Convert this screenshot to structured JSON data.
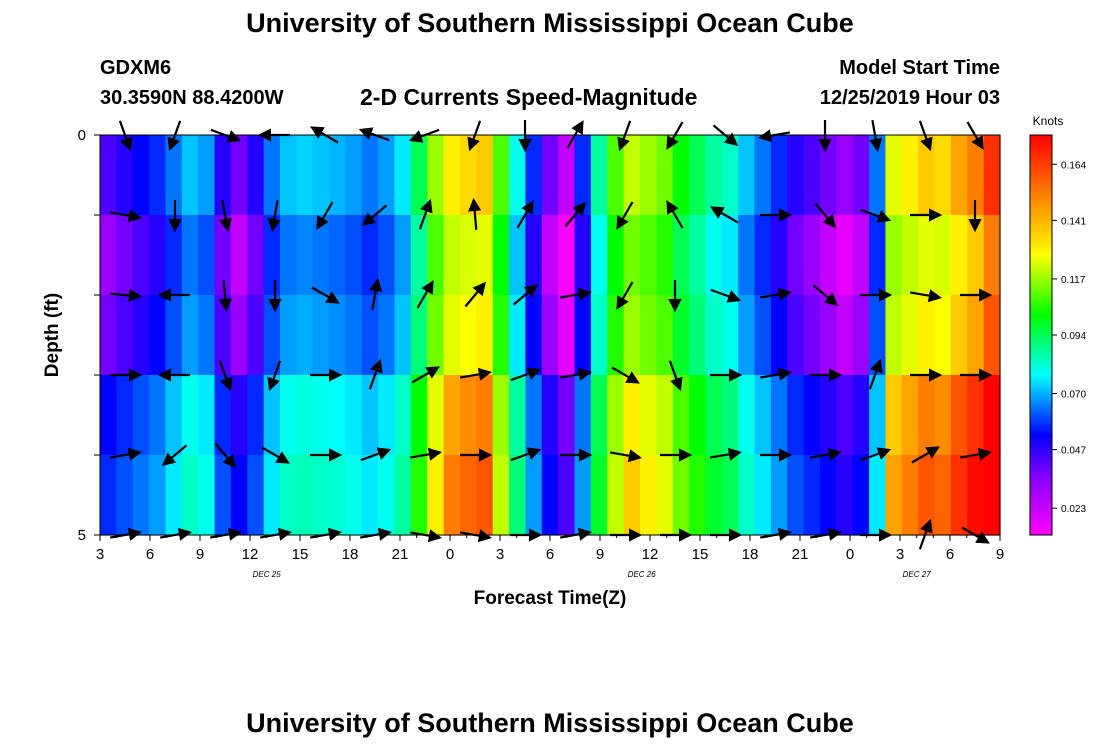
{
  "page": {
    "title_top": "University of Southern Mississippi Ocean Cube",
    "title_bottom": "University of Southern Mississippi Ocean Cube",
    "station": "GDXM6",
    "coords": "30.3590N 88.4200W",
    "product": "2-D Currents Speed-Magnitude",
    "model_label": "Model Start Time",
    "model_time": "12/25/2019 Hour 03"
  },
  "chart_data": {
    "type": "heatmap",
    "title": "2-D Currents Speed-Magnitude",
    "xlabel": "Forecast Time(Z)",
    "ylabel": "Depth (ft)",
    "colorbar_label": "Knots",
    "colorbar_ticks": [
      0.023,
      0.047,
      0.07,
      0.094,
      0.117,
      0.141,
      0.164
    ],
    "color_range": [
      0.012,
      0.176
    ],
    "x_range_hours": [
      0,
      54
    ],
    "x_tick_labels": [
      "3",
      "6",
      "9",
      "12",
      "15",
      "18",
      "21",
      "0",
      "3",
      "6",
      "9",
      "12",
      "15",
      "18",
      "21",
      "0",
      "3",
      "6",
      "9"
    ],
    "date_labels": [
      {
        "text": "DEC 25",
        "hour": 10
      },
      {
        "text": "DEC 26",
        "hour": 32.5
      },
      {
        "text": "DEC 27",
        "hour": 49
      }
    ],
    "y_range": [
      0,
      5
    ],
    "y_tick_labels": [
      "0",
      "5"
    ],
    "layers": 5,
    "speed_columns": [
      0.035,
      0.04,
      0.045,
      0.05,
      0.06,
      0.07,
      0.065,
      0.04,
      0.03,
      0.04,
      0.06,
      0.07,
      0.072,
      0.07,
      0.068,
      0.065,
      0.06,
      0.065,
      0.075,
      0.1,
      0.13,
      0.145,
      0.148,
      0.15,
      0.12,
      0.08,
      0.05,
      0.03,
      0.02,
      0.05,
      0.09,
      0.12,
      0.135,
      0.13,
      0.125,
      0.11,
      0.1,
      0.09,
      0.085,
      0.07,
      0.06,
      0.05,
      0.04,
      0.035,
      0.03,
      0.025,
      0.03,
      0.06,
      0.14,
      0.145,
      0.15,
      0.148,
      0.155,
      0.16,
      0.17
    ],
    "depth_offsets": [
      0.0,
      -0.01,
      -0.005,
      0.01,
      0.015,
      0.02
    ],
    "vector_hours": [
      1.5,
      4.5,
      7.5,
      10.5,
      13.5,
      16.5,
      19.5,
      22.5,
      25.5,
      28.5,
      31.5,
      34.5,
      37.5,
      40.5,
      43.5,
      46.5,
      49.5,
      52.5
    ],
    "vector_depths": [
      0,
      1,
      2,
      3,
      4,
      5
    ],
    "vector_directions_deg": [
      [
        160,
        200,
        110,
        270,
        300,
        290,
        250,
        200,
        180,
        30,
        200,
        210,
        130,
        260,
        180,
        170,
        160,
        150
      ],
      [
        100,
        180,
        170,
        190,
        210,
        230,
        20,
        355,
        30,
        40,
        210,
        330,
        300,
        90,
        140,
        110,
        90,
        180
      ],
      [
        95,
        270,
        175,
        180,
        120,
        10,
        30,
        40,
        50,
        80,
        210,
        180,
        110,
        80,
        130,
        90,
        100,
        90
      ],
      [
        90,
        270,
        160,
        200,
        90,
        20,
        60,
        80,
        70,
        80,
        120,
        160,
        90,
        80,
        90,
        20,
        90,
        90
      ],
      [
        80,
        230,
        140,
        120,
        90,
        70,
        80,
        90,
        70,
        90,
        100,
        90,
        80,
        90,
        80,
        70,
        60,
        80
      ],
      [
        80,
        80,
        80,
        80,
        80,
        80,
        100,
        100,
        90,
        80,
        90,
        90,
        90,
        80,
        80,
        90,
        20,
        120
      ]
    ]
  }
}
